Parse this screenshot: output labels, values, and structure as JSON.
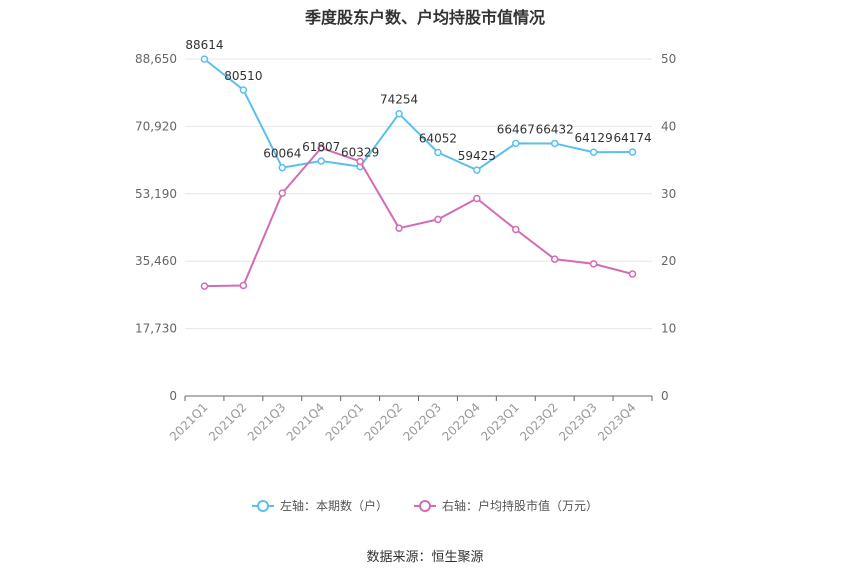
{
  "chart_data": {
    "type": "line",
    "title": "季度股东户数、户均持股市值情况",
    "categories": [
      "2021Q1",
      "2021Q2",
      "2021Q3",
      "2021Q4",
      "2022Q1",
      "2022Q2",
      "2022Q3",
      "2022Q4",
      "2023Q1",
      "2023Q2",
      "2023Q3",
      "2023Q4"
    ],
    "left_axis": {
      "ticks": [
        "0",
        "17,730",
        "35,460",
        "53,190",
        "70,920",
        "88,650"
      ],
      "range": [
        0,
        88650
      ]
    },
    "right_axis": {
      "ticks": [
        "0",
        "10",
        "20",
        "30",
        "40",
        "50"
      ],
      "range": [
        0,
        50
      ]
    },
    "series": [
      {
        "name": "左轴：本期数（户）",
        "axis": "left",
        "color": "#5bc0eb",
        "values": [
          88614,
          80510,
          60064,
          61807,
          60329,
          74254,
          64052,
          59425,
          66467,
          66432,
          64129,
          64174
        ],
        "labels": [
          "88614",
          "80510",
          "60064",
          "61807",
          "60329",
          "74254",
          "64052",
          "59425",
          "66467",
          "66432",
          "64129",
          "64174"
        ]
      },
      {
        "name": "右轴：户均持股市值（万元）",
        "axis": "right",
        "color": "#d46bb3",
        "values": [
          16.3,
          16.4,
          30.1,
          36.8,
          34.8,
          24.9,
          26.2,
          29.3,
          24.7,
          20.3,
          19.6,
          18.1
        ]
      }
    ],
    "grid": true,
    "legend_position": "bottom"
  },
  "source": "数据来源：恒生聚源"
}
